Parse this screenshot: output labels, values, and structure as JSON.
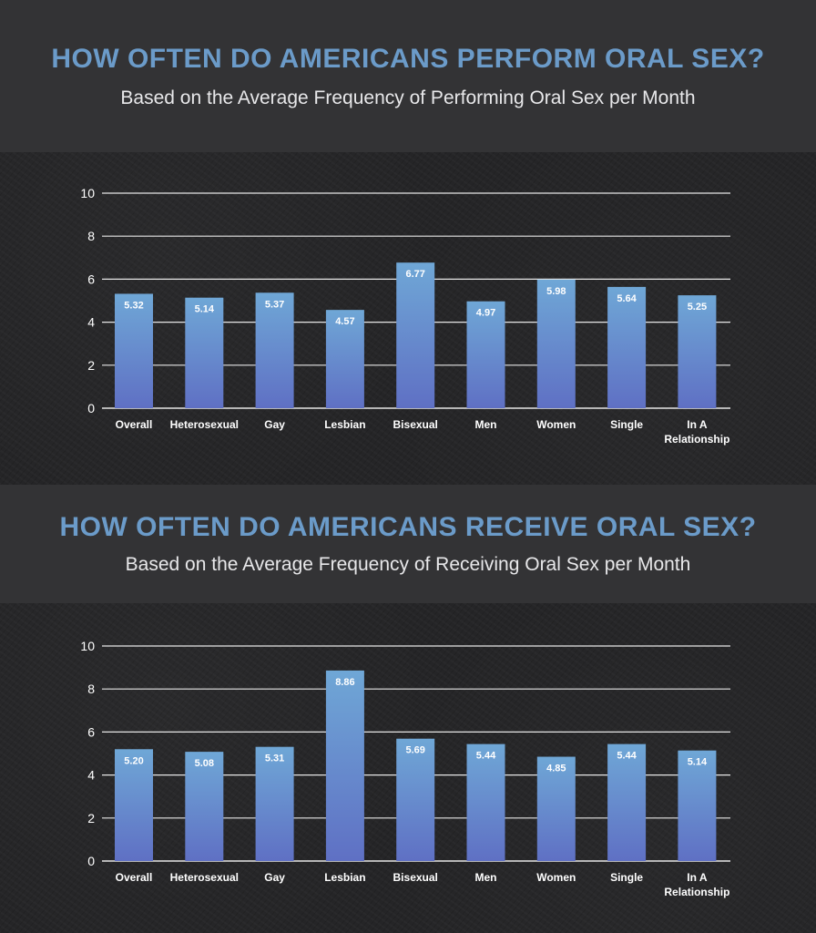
{
  "colors": {
    "background": "#2a2a2c",
    "title": "#6b9bc9",
    "bar_top": "#6fa7d6",
    "bar_bottom": "#5f70c4",
    "gridline": "#e6e6e6"
  },
  "chart_data": [
    {
      "type": "bar",
      "title": "HOW OFTEN DO AMERICANS PERFORM ORAL SEX?",
      "subtitle": "Based on the Average Frequency of Performing Oral Sex per Month",
      "categories": [
        "Overall",
        "Heterosexual",
        "Gay",
        "Lesbian",
        "Bisexual",
        "Men",
        "Women",
        "Single",
        "In A Relationship"
      ],
      "values": [
        5.32,
        5.14,
        5.37,
        4.57,
        6.77,
        4.97,
        5.98,
        5.64,
        5.25
      ],
      "value_labels": [
        "5.32",
        "5.14",
        "5.37",
        "4.57",
        "6.77",
        "4.97",
        "5.98",
        "5.64",
        "5.25"
      ],
      "yticks": [
        "0",
        "2",
        "4",
        "6",
        "8",
        "10"
      ],
      "ylim": [
        0,
        10
      ],
      "grid": true,
      "xlabel": "",
      "ylabel": ""
    },
    {
      "type": "bar",
      "title": "HOW OFTEN DO AMERICANS RECEIVE ORAL SEX?",
      "subtitle": "Based on the Average Frequency of Receiving Oral Sex per Month",
      "categories": [
        "Overall",
        "Heterosexual",
        "Gay",
        "Lesbian",
        "Bisexual",
        "Men",
        "Women",
        "Single",
        "In A Relationship"
      ],
      "values": [
        5.2,
        5.08,
        5.31,
        8.86,
        5.69,
        5.44,
        4.85,
        5.44,
        5.14
      ],
      "value_labels": [
        "5.20",
        "5.08",
        "5.31",
        "8.86",
        "5.69",
        "5.44",
        "4.85",
        "5.44",
        "5.14"
      ],
      "yticks": [
        "0",
        "2",
        "4",
        "6",
        "8",
        "10"
      ],
      "ylim": [
        0,
        10
      ],
      "grid": true,
      "xlabel": "",
      "ylabel": ""
    }
  ]
}
